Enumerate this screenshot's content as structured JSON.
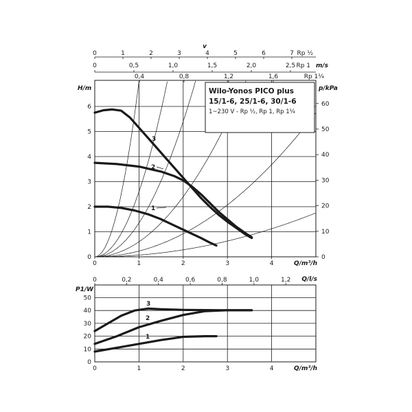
{
  "chart_data": [
    {
      "type": "line",
      "title_lines": [
        "Wilo-Yonos PICO plus",
        "15/1-6, 25/1-6, 30/1-6"
      ],
      "subtitle": "1~230 V - Rp ½, Rp 1, Rp 1¼",
      "xlabel": "Q/m³/h",
      "ylabel": "H/m",
      "y2label": "p/kPa",
      "xlim": [
        0,
        5
      ],
      "ylim": [
        0,
        6.1
      ],
      "x_ticks": [
        "0",
        "1",
        "2",
        "3",
        "4"
      ],
      "y_ticks": [
        "0",
        "1",
        "2",
        "3",
        "4",
        "5",
        "6"
      ],
      "y2_ticks": [
        "0",
        "10",
        "20",
        "30",
        "40",
        "50",
        "60"
      ],
      "top_axes": [
        {
          "label": "v",
          "unit_label": "",
          "ticks": [
            "0",
            "1",
            "2",
            "3",
            "4",
            "5",
            "6",
            "7"
          ],
          "end_label": "Rp ½",
          "m3h_per_unit": 0.5
        },
        {
          "label": "m/s",
          "ticks": [
            "0",
            "0,5",
            "1,0",
            "1,5",
            "2,0",
            "2,5"
          ],
          "end_label": "Rp 1",
          "m3h_per_unit": 1.56
        },
        {
          "label": "",
          "ticks": [
            "0,4",
            "0,8",
            "1,2",
            "1,6"
          ],
          "end_label": "Rp 1¼",
          "m3h_per_unit": 2.5
        }
      ],
      "series": [
        {
          "name": "3",
          "x": [
            0,
            0.2,
            0.4,
            0.6,
            0.8,
            1.0,
            1.2,
            1.4,
            1.6,
            1.8,
            2.0,
            2.2,
            2.4,
            2.6,
            2.8,
            3.0,
            3.2,
            3.4,
            3.55
          ],
          "y": [
            5.75,
            5.85,
            5.88,
            5.83,
            5.55,
            5.15,
            4.75,
            4.35,
            3.95,
            3.55,
            3.15,
            2.75,
            2.35,
            2.0,
            1.68,
            1.4,
            1.15,
            0.9,
            0.75
          ]
        },
        {
          "name": "2",
          "x": [
            0,
            0.5,
            1.0,
            1.5,
            1.8,
            2.0,
            2.2,
            2.4,
            2.6,
            2.8,
            3.0,
            3.2,
            3.4,
            3.55
          ],
          "y": [
            3.75,
            3.7,
            3.6,
            3.4,
            3.22,
            3.05,
            2.8,
            2.5,
            2.15,
            1.8,
            1.5,
            1.2,
            0.95,
            0.78
          ]
        },
        {
          "name": "1",
          "x": [
            0,
            0.3,
            0.6,
            0.9,
            1.2,
            1.5,
            1.8,
            2.1,
            2.4,
            2.6,
            2.75
          ],
          "y": [
            2.0,
            2.0,
            1.95,
            1.85,
            1.7,
            1.5,
            1.25,
            1.0,
            0.75,
            0.57,
            0.45
          ]
        }
      ],
      "system_curve_coefficients": [
        7.0,
        2.6,
        1.35,
        0.6,
        0.23,
        0.07
      ],
      "legend": "inline-labels"
    },
    {
      "type": "line",
      "xlabel": "Q/m³/h",
      "ylabel": "P1/W",
      "xlim": [
        0,
        5
      ],
      "ylim": [
        0,
        50
      ],
      "x_ticks": [
        "0",
        "1",
        "2",
        "3",
        "4"
      ],
      "y_ticks": [
        "0",
        "10",
        "20",
        "30",
        "40",
        "50"
      ],
      "top_axis": {
        "label": "Q/l/s",
        "ticks": [
          "0",
          "0,2",
          "0,4",
          "0,6",
          "0,8",
          "1,0",
          "1,2"
        ]
      },
      "series": [
        {
          "name": "3",
          "x": [
            0,
            0.3,
            0.6,
            0.9,
            1.2,
            1.5,
            2.0,
            2.5,
            3.0,
            3.55
          ],
          "y": [
            24,
            30,
            36,
            40,
            41.5,
            41,
            40.5,
            40.3,
            40.2,
            40.2
          ]
        },
        {
          "name": "2",
          "x": [
            0,
            0.5,
            1.0,
            1.5,
            2.0,
            2.5,
            3.0,
            3.55
          ],
          "y": [
            14,
            20,
            27,
            32,
            36.5,
            39.5,
            40.2,
            40.2
          ]
        },
        {
          "name": "1",
          "x": [
            0,
            0.5,
            1.0,
            1.5,
            2.0,
            2.5,
            2.75
          ],
          "y": [
            8,
            11,
            14,
            17,
            19.5,
            20,
            20
          ]
        }
      ],
      "legend": "inline-labels"
    }
  ]
}
